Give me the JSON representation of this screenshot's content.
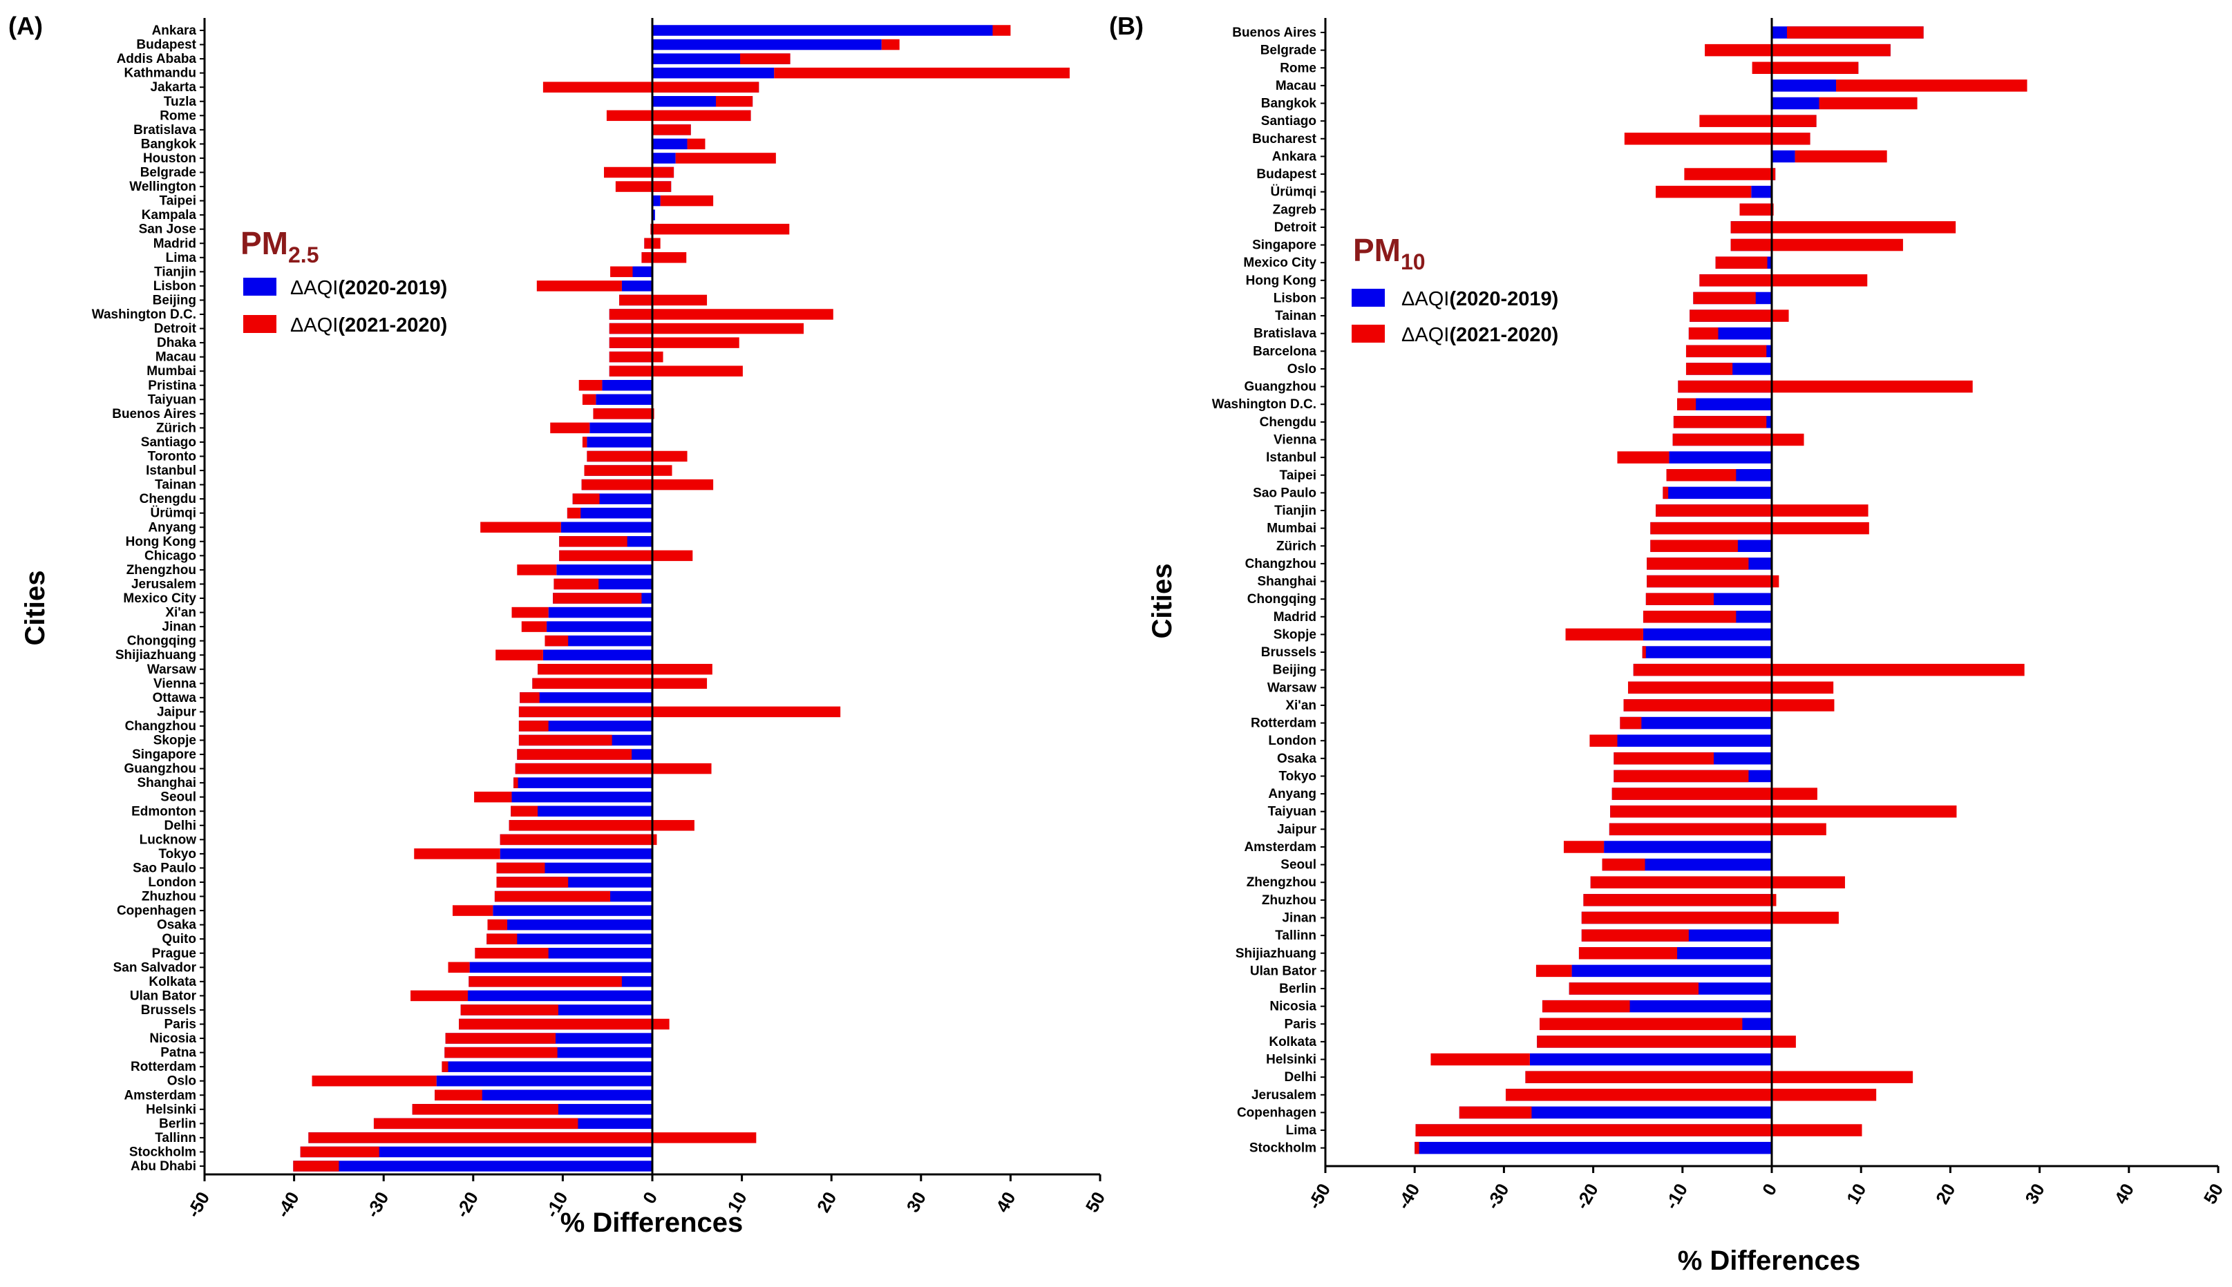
{
  "colors": {
    "series2019": "#0000ee",
    "series2020": "#ee0000",
    "axis": "#000000",
    "title": "#8b1a1a"
  },
  "chart_data": [
    {
      "type": "bar",
      "orientation": "horizontal",
      "stacked": true,
      "panel_label": "(A)",
      "title_main": "PM",
      "title_sub": "2.5",
      "xlabel": "% Differences",
      "ylabel": "Cities",
      "xlim": [
        -50,
        50
      ],
      "xticks": [
        "-50",
        "-40",
        "-30",
        "-20",
        "-10",
        "0",
        "10",
        "20",
        "30",
        "40",
        "50"
      ],
      "legend": [
        {
          "delta": "ΔAQI",
          "years": "(2020-2019)"
        },
        {
          "delta": "ΔAQI",
          "years": "(2021-2020)"
        }
      ],
      "categories": [
        "Ankara",
        "Budapest",
        "Addis Ababa",
        "Kathmandu",
        "Jakarta",
        "Tuzla",
        "Rome",
        "Bratislava",
        "Bangkok",
        "Houston",
        "Belgrade",
        "Wellington",
        "Taipei",
        "Kampala",
        "San Jose",
        "Madrid",
        "Lima",
        "Tianjin",
        "Lisbon",
        "Beijing",
        "Washington D.C.",
        "Detroit",
        "Dhaka",
        "Macau",
        "Mumbai",
        "Pristina",
        "Taiyuan",
        "Buenos Aires",
        "Zürich",
        "Santiago",
        "Toronto",
        "Istanbul",
        "Tainan",
        "Chengdu",
        "Ürümqi",
        "Anyang",
        "Hong Kong",
        "Chicago",
        "Zhengzhou",
        "Jerusalem",
        "Mexico City",
        "Xi'an",
        "Jinan",
        "Chongqing",
        "Shijiazhuang",
        "Warsaw",
        "Vienna",
        "Ottawa",
        "Jaipur",
        "Changzhou",
        "Skopje",
        "Singapore",
        "Guangzhou",
        "Shanghai",
        "Seoul",
        "Edmonton",
        "Delhi",
        "Lucknow",
        "Tokyo",
        "Sao Paulo",
        "London",
        "Zhuzhou",
        "Copenhagen",
        "Osaka",
        "Quito",
        "Prague",
        "San Salvador",
        "Kolkata",
        "Ulan Bator",
        "Brussels",
        "Paris",
        "Nicosia",
        "Patna",
        "Rotterdam",
        "Oslo",
        "Amsterdam",
        "Helsinki",
        "Berlin",
        "Tallinn",
        "Stockholm",
        "Abu Dhabi"
      ],
      "series": [
        {
          "name": "ΔAQI(2020-2019)",
          "values": [
            38,
            25.6,
            15.4,
            13.6,
            11.9,
            11.2,
            11,
            4.3,
            3.9,
            2.6,
            2.4,
            2.1,
            0.9,
            0.3,
            -0.2,
            -0.9,
            -1.2,
            -2.2,
            -3.4,
            -3.7,
            -4.8,
            -4.8,
            -4.8,
            -4.8,
            -4.8,
            -5.6,
            -6.3,
            -6.6,
            -7,
            -7.3,
            -7.3,
            -7.6,
            -7.9,
            -8.9,
            -9.5,
            -10.2,
            -10.4,
            -10.4,
            -10.7,
            -11,
            -11.1,
            -11.6,
            -11.8,
            -12,
            -12.2,
            -12.8,
            -13.4,
            -14.8,
            -14.9,
            -14.9,
            -14.9,
            -15.1,
            -15.3,
            -15.5,
            -15.7,
            -15.8,
            -16,
            -17,
            -17,
            -17.4,
            -17.4,
            -17.6,
            -17.8,
            -18.4,
            -18.5,
            -19.8,
            -20.4,
            -20.5,
            -20.6,
            -21.4,
            -21.6,
            -23.1,
            -23.2,
            -23.5,
            -24.1,
            -24.3,
            -26.8,
            -31.1,
            -38.4,
            -39.3,
            -40.1
          ]
        },
        {
          "name": "ΔAQI(2021-2020)",
          "values": [
            2,
            2,
            -5.6,
            33,
            -24.1,
            -4.1,
            -16.1,
            -4.4,
            2,
            11.2,
            -7.8,
            -6.2,
            5.9,
            0,
            15.5,
            1.8,
            5,
            -2.5,
            -9.5,
            9.8,
            25,
            21.7,
            14.5,
            6,
            14.9,
            -2.6,
            -1.5,
            6.8,
            -4.4,
            -0.5,
            11.2,
            9.8,
            14.7,
            3,
            1.5,
            -9,
            7.6,
            14.9,
            -4.4,
            5,
            9.9,
            -4.1,
            -2.8,
            2.6,
            -5.3,
            19.5,
            19.5,
            2.2,
            35.9,
            3.3,
            10.4,
            12.8,
            21.9,
            0.5,
            -4.2,
            3,
            20.7,
            17.5,
            -9.6,
            5.4,
            8,
            12.9,
            -4.5,
            2.2,
            3.4,
            8.2,
            -2.4,
            17.1,
            -6.4,
            10.9,
            23.5,
            12.3,
            12.6,
            0.7,
            -13.9,
            5.3,
            16.3,
            22.8,
            50,
            8.8,
            5.1
          ]
        }
      ]
    },
    {
      "type": "bar",
      "orientation": "horizontal",
      "stacked": true,
      "panel_label": "(B)",
      "title_main": "PM",
      "title_sub": "10",
      "xlabel": "% Differences",
      "ylabel": "Cities",
      "xlim": [
        -50,
        50
      ],
      "xticks": [
        "-50",
        "-40",
        "-30",
        "-20",
        "-10",
        "0",
        "10",
        "20",
        "30",
        "40",
        "50"
      ],
      "legend": [
        {
          "delta": "ΔAQI",
          "years": "(2020-2019)"
        },
        {
          "delta": "ΔAQI",
          "years": "(2021-2020)"
        }
      ],
      "categories": [
        "Buenos Aires",
        "Belgrade",
        "Rome",
        "Macau",
        "Bangkok",
        "Santiago",
        "Bucharest",
        "Ankara",
        "Budapest",
        "Ürümqi",
        "Zagreb",
        "Detroit",
        "Singapore",
        "Mexico City",
        "Hong Kong",
        "Lisbon",
        "Tainan",
        "Bratislava",
        "Barcelona",
        "Oslo",
        "Guangzhou",
        "Washington D.C.",
        "Chengdu",
        "Vienna",
        "Istanbul",
        "Taipei",
        "Sao Paulo",
        "Tianjin",
        "Mumbai",
        "Zürich",
        "Changzhou",
        "Shanghai",
        "Chongqing",
        "Madrid",
        "Skopje",
        "Brussels",
        "Beijing",
        "Warsaw",
        "Xi'an",
        "Rotterdam",
        "London",
        "Osaka",
        "Tokyo",
        "Anyang",
        "Taiyuan",
        "Jaipur",
        "Amsterdam",
        "Seoul",
        "Zhengzhou",
        "Zhuzhou",
        "Jinan",
        "Tallinn",
        "Shijiazhuang",
        "Ulan Bator",
        "Berlin",
        "Nicosia",
        "Paris",
        "Kolkata",
        "Helsinki",
        "Delhi",
        "Jerusalem",
        "Copenhagen",
        "Lima",
        "Stockholm"
      ],
      "series": [
        {
          "name": "ΔAQI(2020-2019)",
          "values": [
            17,
            13.3,
            9.7,
            7.2,
            5.3,
            5,
            4.3,
            2.6,
            0.4,
            -2.3,
            -3.6,
            -4.6,
            -4.6,
            -6.3,
            -8.1,
            -8.8,
            -9.2,
            -9.3,
            -9.6,
            -9.6,
            -10.5,
            -10.6,
            -11,
            -11.1,
            -11.5,
            -11.8,
            -12.2,
            -13,
            -13.6,
            -13.6,
            -14,
            -14,
            -14.1,
            -14.4,
            -14.4,
            -14.5,
            -15.5,
            -16.1,
            -16.6,
            -17,
            -17.3,
            -17.7,
            -17.7,
            -17.9,
            -18.1,
            -18.2,
            -18.8,
            -19,
            -20.3,
            -21.1,
            -21.3,
            -21.3,
            -21.6,
            -22.4,
            -22.7,
            -25.7,
            -26,
            -26.3,
            -27.1,
            -27.6,
            -29.8,
            -35,
            -39.9,
            -40
          ]
        },
        {
          "name": "ΔAQI(2021-2020)",
          "values": [
            -15.3,
            -20.8,
            -11.9,
            21.4,
            11,
            -13.1,
            -20.8,
            10.3,
            -10.2,
            -10.7,
            3.8,
            25.2,
            19.3,
            5.8,
            18.8,
            7,
            11.1,
            3.3,
            9,
            5.2,
            33,
            2.1,
            10.4,
            14.7,
            -5.8,
            7.8,
            0.6,
            23.8,
            24.5,
            9.8,
            11.4,
            14.8,
            7.6,
            10.4,
            -8.7,
            0.4,
            43.8,
            23,
            23.6,
            2.4,
            -3.1,
            11.2,
            15.1,
            23,
            38.8,
            24.3,
            -4.5,
            4.8,
            28.5,
            21.6,
            28.8,
            12,
            11,
            -4,
            14.5,
            9.8,
            22.7,
            29,
            -11.1,
            43.4,
            41.5,
            8.1,
            50,
            0.5
          ]
        }
      ]
    }
  ]
}
